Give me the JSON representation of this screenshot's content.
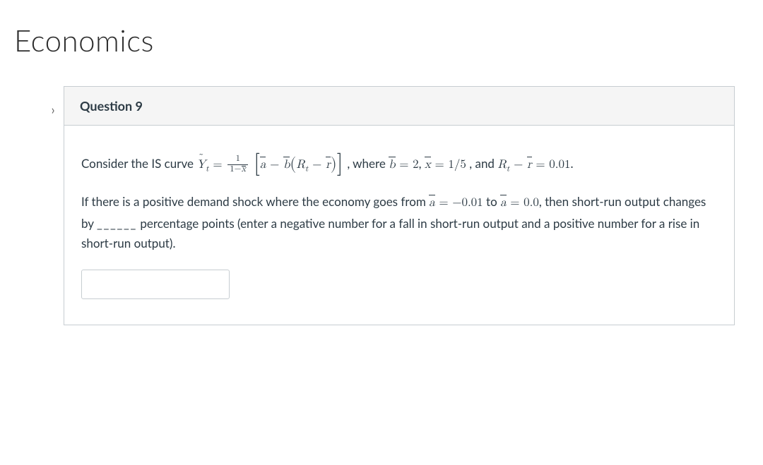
{
  "page": {
    "title": "Economics"
  },
  "arrow_glyph": "›",
  "question": {
    "header": "Question 9",
    "lead_text": "Consider the IS curve ",
    "where_text": ", where ",
    "param_b": "2",
    "param_x": "1/5",
    "and_text": ", and ",
    "param_r_diff": "0.01",
    "period": ".",
    "para2_a": "If there is a positive demand shock where the economy goes from ",
    "a_from": "−0.01",
    "to_text": " to ",
    "a_to": "0.0",
    "para2_b": ", then short-run output changes by ",
    "blank": "______",
    "para2_c": " percentage points (enter a negative number for a fall in short-run output and a positive number for a rise in short-run output).",
    "answer_value": ""
  },
  "colors": {
    "border": "#c7cdd1",
    "header_bg": "#f5f5f5",
    "text": "#2d3b45",
    "title": "#2d2d2d"
  }
}
